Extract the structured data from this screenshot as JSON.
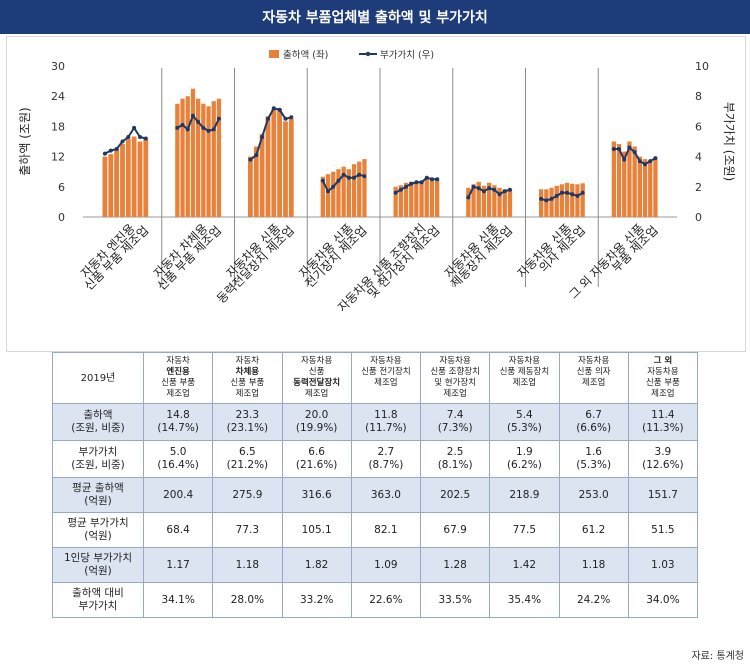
{
  "title": "자동차 부품업체별 출하액 및 부가가치",
  "source": "자료: 통계청",
  "colors": {
    "bar": "#e8823a",
    "line": "#1f3864",
    "header": "#1f3c7a",
    "shade": "#dce4f2"
  },
  "chart_data": {
    "type": "bar",
    "ylabel_left": "출하액 (조원)",
    "ylabel_right": "부가가치 (조원)",
    "ylim_left": [
      0,
      30
    ],
    "ylim_right": [
      0,
      10
    ],
    "yticks_left": [
      "0",
      "6",
      "12",
      "18",
      "24",
      "30"
    ],
    "yticks_right": [
      "0",
      "2",
      "4",
      "6",
      "8",
      "10"
    ],
    "legend": {
      "bar_label": "출하액 (좌)",
      "line_label": "부가가치 (우)",
      "placement": "top-center"
    },
    "groups": [
      {
        "label_line1": "자동차 엔진용",
        "label_line2": "신품 부품 제조업",
        "bars": [
          12.0,
          12.5,
          13.5,
          14.5,
          15.5,
          16.0,
          15.0,
          15.5
        ],
        "line": [
          4.2,
          4.4,
          4.5,
          5.0,
          5.3,
          5.9,
          5.3,
          5.2
        ]
      },
      {
        "label_line1": "자동차 차체용",
        "label_line2": "신품 부품 제조업",
        "bars": [
          22.5,
          23.5,
          24.0,
          25.5,
          23.5,
          22.5,
          22.0,
          23.0,
          23.5
        ],
        "line": [
          5.9,
          6.1,
          5.8,
          6.7,
          6.3,
          5.9,
          5.7,
          5.8,
          6.5
        ]
      },
      {
        "label_line1": "자동차용 신품",
        "label_line2": "동력전달장치 제조업",
        "bars": [
          12.0,
          14.0,
          16.5,
          20.0,
          21.5,
          21.5,
          19.0,
          19.5
        ],
        "line": [
          3.8,
          4.1,
          5.3,
          6.5,
          7.2,
          7.1,
          6.5,
          6.6
        ]
      },
      {
        "label_line1": "자동차용 신품",
        "label_line2": "전기장치 제조업",
        "bars": [
          8.0,
          8.5,
          9.0,
          9.5,
          10.0,
          9.5,
          10.5,
          11.0,
          11.5
        ],
        "line": [
          2.4,
          1.7,
          2.0,
          2.4,
          2.8,
          2.6,
          2.6,
          2.8,
          2.7
        ]
      },
      {
        "label_line1": "자동차용 신품 조향장치",
        "label_line2": "및 현가장치 제조업",
        "bars": [
          6.0,
          6.3,
          6.8,
          7.0,
          7.0,
          7.2,
          7.8,
          7.5,
          7.6
        ],
        "line": [
          1.6,
          1.8,
          2.0,
          2.2,
          2.3,
          2.3,
          2.6,
          2.5,
          2.5
        ]
      },
      {
        "label_line1": "자동차용 신품",
        "label_line2": "제동장치 제조업",
        "bars": [
          5.8,
          6.5,
          7.0,
          6.2,
          6.8,
          6.3,
          5.8,
          5.5,
          5.5
        ],
        "line": [
          1.3,
          2.0,
          1.9,
          1.7,
          1.9,
          1.8,
          1.5,
          1.7,
          1.8
        ]
      },
      {
        "label_line1": "자동차용 신품",
        "label_line2": "의자 제조업",
        "bars": [
          5.5,
          5.5,
          5.8,
          6.2,
          6.5,
          6.8,
          6.6,
          6.5,
          6.7
        ],
        "line": [
          1.2,
          1.1,
          1.2,
          1.4,
          1.6,
          1.6,
          1.5,
          1.4,
          1.6
        ]
      },
      {
        "label_line1": "그 외 자동차용 신품",
        "label_line2": "부품 제조업",
        "bars": [
          15.0,
          14.5,
          13.0,
          15.0,
          14.0,
          12.0,
          11.5,
          11.0,
          11.5
        ],
        "line": [
          4.5,
          4.5,
          3.8,
          4.6,
          4.3,
          3.7,
          3.5,
          3.7,
          3.9
        ]
      }
    ]
  },
  "table": {
    "corner": "2019년",
    "columns": [
      {
        "l1": "자동차",
        "l2": "엔진용",
        "l3": "신품 부품",
        "l4": "제조업",
        "bold": "l2"
      },
      {
        "l1": "자동차",
        "l2": "차체용",
        "l3": "신품 부품",
        "l4": "제조업",
        "bold": "l2"
      },
      {
        "l1": "자동차용",
        "l2": "신품",
        "l3": "동력전달장치",
        "l4": "제조업",
        "bold": "l3"
      },
      {
        "l1": "자동차용",
        "l2": "신품 전기장치",
        "l3": "제조업",
        "l4": "",
        "bold": "none"
      },
      {
        "l1": "자동차용",
        "l2": "신품 조향장치",
        "l3": "및 현가장치",
        "l4": "제조업",
        "bold": "none"
      },
      {
        "l1": "자동차용",
        "l2": "신품 제동장치",
        "l3": "제조업",
        "l4": "",
        "bold": "none"
      },
      {
        "l1": "자동차용",
        "l2": "신품 의자",
        "l3": "제조업",
        "l4": "",
        "bold": "none"
      },
      {
        "l1": "그 외",
        "l2": "자동차용",
        "l3": "신품 부품",
        "l4": "제조업",
        "bold": "l1"
      }
    ],
    "rows": [
      {
        "label1": "출하액",
        "label2": "(조원, 비중)",
        "shade": true,
        "cells": [
          [
            "14.8",
            "(14.7%)"
          ],
          [
            "23.3",
            "(23.1%)"
          ],
          [
            "20.0",
            "(19.9%)"
          ],
          [
            "11.8",
            "(11.7%)"
          ],
          [
            "7.4",
            "(7.3%)"
          ],
          [
            "5.4",
            "(5.3%)"
          ],
          [
            "6.7",
            "(6.6%)"
          ],
          [
            "11.4",
            "(11.3%)"
          ]
        ]
      },
      {
        "label1": "부가가치",
        "label2": "(조원, 비중)",
        "shade": false,
        "cells": [
          [
            "5.0",
            "(16.4%)"
          ],
          [
            "6.5",
            "(21.2%)"
          ],
          [
            "6.6",
            "(21.6%)"
          ],
          [
            "2.7",
            "(8.7%)"
          ],
          [
            "2.5",
            "(8.1%)"
          ],
          [
            "1.9",
            "(6.2%)"
          ],
          [
            "1.6",
            "(5.3%)"
          ],
          [
            "3.9",
            "(12.6%)"
          ]
        ]
      },
      {
        "label1": "평균 출하액",
        "label2": "(억원)",
        "shade": true,
        "cells": [
          [
            "200.4"
          ],
          [
            "275.9"
          ],
          [
            "316.6"
          ],
          [
            "363.0"
          ],
          [
            "202.5"
          ],
          [
            "218.9"
          ],
          [
            "253.0"
          ],
          [
            "151.7"
          ]
        ]
      },
      {
        "label1": "평균 부가가치",
        "label2": "(억원)",
        "shade": false,
        "cells": [
          [
            "68.4"
          ],
          [
            "77.3"
          ],
          [
            "105.1"
          ],
          [
            "82.1"
          ],
          [
            "67.9"
          ],
          [
            "77.5"
          ],
          [
            "61.2"
          ],
          [
            "51.5"
          ]
        ]
      },
      {
        "label1": "1인당 부가가치",
        "label2": "(억원)",
        "shade": true,
        "cells": [
          [
            "1.17"
          ],
          [
            "1.18"
          ],
          [
            "1.82"
          ],
          [
            "1.09"
          ],
          [
            "1.28"
          ],
          [
            "1.42"
          ],
          [
            "1.18"
          ],
          [
            "1.03"
          ]
        ]
      },
      {
        "label1": "출하액 대비",
        "label2": "부가가치",
        "shade": false,
        "cells": [
          [
            "34.1%"
          ],
          [
            "28.0%"
          ],
          [
            "33.2%"
          ],
          [
            "22.6%"
          ],
          [
            "33.5%"
          ],
          [
            "35.4%"
          ],
          [
            "24.2%"
          ],
          [
            "34.0%"
          ]
        ]
      }
    ]
  }
}
